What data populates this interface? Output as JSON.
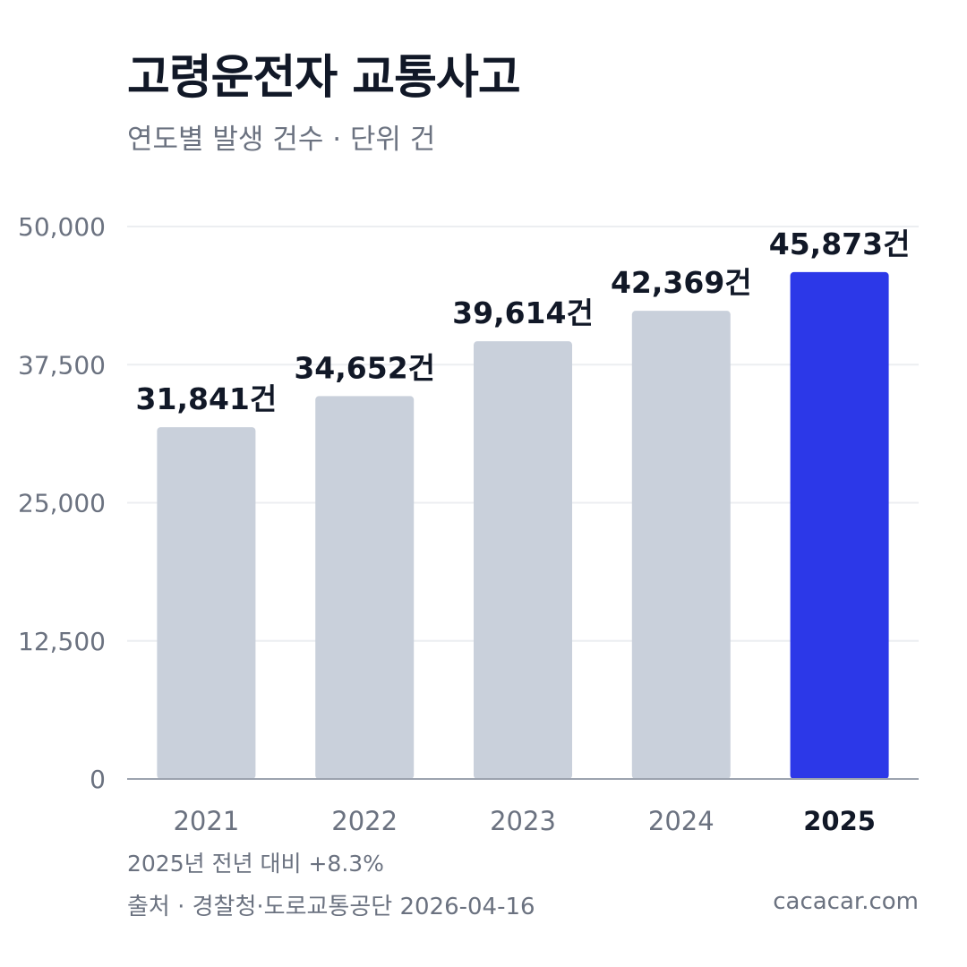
{
  "header": {
    "title": "고령운전자 교통사고",
    "subtitle": "연도별 발생 건수 · 단위 건"
  },
  "chart_data": {
    "type": "bar",
    "categories": [
      "2021",
      "2022",
      "2023",
      "2024",
      "2025"
    ],
    "values": [
      31841,
      34652,
      39614,
      42369,
      45873
    ],
    "data_labels": [
      "31,841건",
      "34,652건",
      "39,614건",
      "42,369건",
      "45,873건"
    ],
    "yticks": [
      "0",
      "12,500",
      "25,000",
      "37,500",
      "50,000"
    ],
    "ylim": [
      0,
      50000
    ],
    "highlight_index": 4,
    "grid": true,
    "colors": {
      "bar": "#c9d0db",
      "highlight": "#2c38e8",
      "grid": "#eceef1",
      "axis": "#9ca3af",
      "label": "#111827",
      "tick": "#6b7280"
    }
  },
  "footer": {
    "note": "2025년 전년 대비 +8.3%",
    "source": "출처 · 경찰청·도로교통공단 2026-04-16",
    "brand": "cacacar.com"
  }
}
